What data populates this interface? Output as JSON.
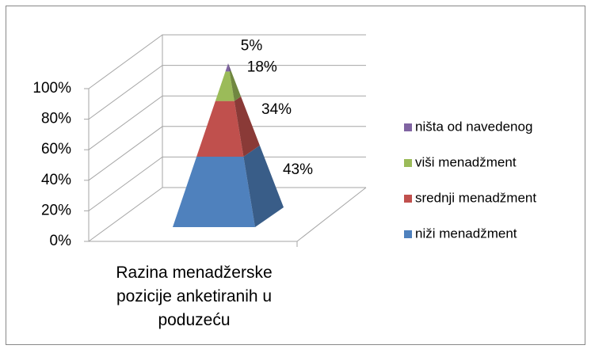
{
  "chart_data": {
    "type": "pyramid",
    "categories": [
      "Razina menadžerske pozicije anketiranih u poduzeću"
    ],
    "series": [
      {
        "name": "niži menadžment",
        "color": "#4f81bd",
        "values": [
          43
        ],
        "value_labels": [
          "43%"
        ]
      },
      {
        "name": "srednji menadžment",
        "color": "#c0504d",
        "values": [
          34
        ],
        "value_labels": [
          "34%"
        ]
      },
      {
        "name": "viši menadžment",
        "color": "#9bbb59",
        "values": [
          18
        ],
        "value_labels": [
          "18%"
        ]
      },
      {
        "name": "ništa od navedenog",
        "color": "#8064a2",
        "values": [
          5
        ],
        "value_labels": [
          "5%"
        ]
      }
    ],
    "ylim": [
      0,
      100
    ],
    "yticks": [
      {
        "value": 0,
        "label": "0%"
      },
      {
        "value": 20,
        "label": "20%"
      },
      {
        "value": 40,
        "label": "40%"
      },
      {
        "value": 60,
        "label": "60%"
      },
      {
        "value": 80,
        "label": "80%"
      },
      {
        "value": 100,
        "label": "100%"
      }
    ],
    "grid": true,
    "legend": "right",
    "stacked": true
  }
}
